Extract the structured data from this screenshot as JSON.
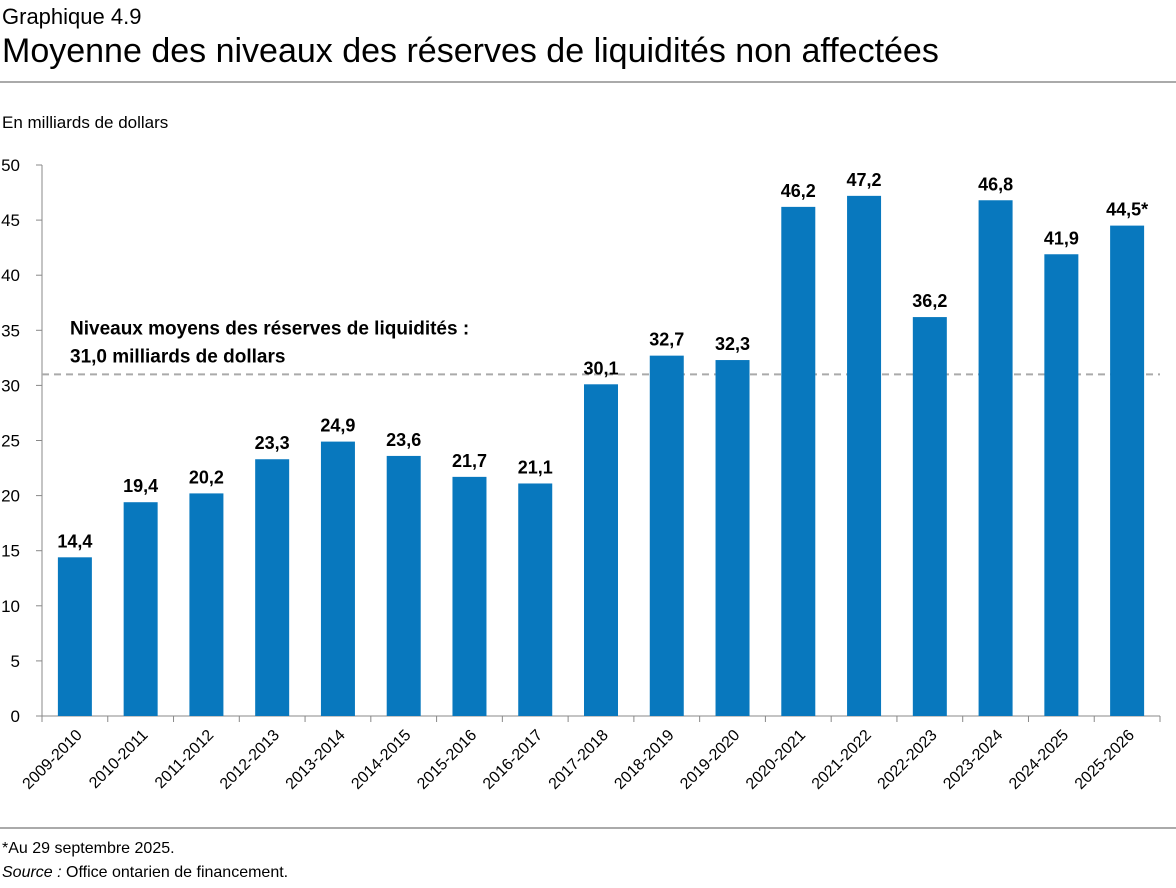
{
  "chart_data": {
    "type": "bar",
    "kicker": "Graphique 4.9",
    "title": "Moyenne des niveaux des réserves de liquidités non affectées",
    "y_label": "En milliards de dollars",
    "categories": [
      "2009-2010",
      "2010-2011",
      "2011-2012",
      "2012-2013",
      "2013-2014",
      "2014-2015",
      "2015-2016",
      "2016-2017",
      "2017-2018",
      "2018-2019",
      "2019-2020",
      "2020-2021",
      "2021-2022",
      "2022-2023",
      "2023-2024",
      "2024-2025",
      "2025-2026"
    ],
    "values": [
      14.4,
      19.4,
      20.2,
      23.3,
      24.9,
      23.6,
      21.7,
      21.1,
      30.1,
      32.7,
      32.3,
      46.2,
      47.2,
      36.2,
      46.8,
      41.9,
      44.5
    ],
    "value_labels": [
      "14,4",
      "19,4",
      "20,2",
      "23,3",
      "24,9",
      "23,6",
      "21,7",
      "21,1",
      "30,1",
      "32,7",
      "32,3",
      "46,2",
      "47,2",
      "36,2",
      "46,8",
      "41,9",
      "44,5*"
    ],
    "color": "#0878be",
    "ylim": [
      0,
      50
    ],
    "yticks": [
      0,
      5,
      10,
      15,
      20,
      25,
      30,
      35,
      40,
      45,
      50
    ],
    "reference_line": {
      "value": 31.0,
      "color": "#aaaaaa",
      "label": [
        "Niveaux moyens des réserves de liquidités :",
        "31,0 milliards de dollars"
      ]
    },
    "note": "*Au 29 septembre 2025.",
    "source_label": "Source :",
    "source_text": "Office ontarien de financement."
  }
}
